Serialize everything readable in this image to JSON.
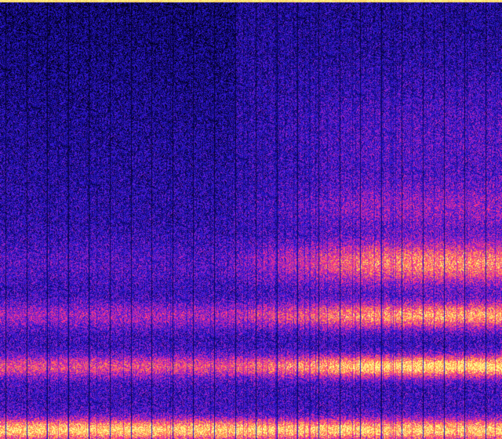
{
  "image": {
    "kind": "spectrogram",
    "colormap": [
      "#000010",
      "#14087a",
      "#2a1ad8",
      "#9a20c8",
      "#ff3088",
      "#ffa040",
      "#ffff90"
    ],
    "background_color": "#0a0640",
    "accent_colors": {
      "low": "#2a1ad8",
      "mid": "#ff3088",
      "high": "#ffff90"
    }
  }
}
